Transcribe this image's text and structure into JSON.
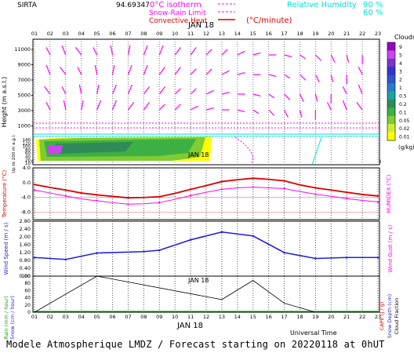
{
  "header": {
    "site": "SIRTA",
    "coords": "94.69347",
    "isotherm_label": "0°C isotherm",
    "snow_rain_label": "Snow-Rain Limit",
    "convective_label": "Convective Heat",
    "convective_unit": "(°C/minute)",
    "rh_label": "Relative Humidity",
    "rh_90": "90 %",
    "rh_60": "60 %",
    "date_label": "JAN 18"
  },
  "colors": {
    "magenta": "#ff00ff",
    "red": "#dd0000",
    "cyan": "#00dddd",
    "blue": "#2020dd",
    "green": "#00aa00"
  },
  "hours": [
    "01",
    "02",
    "03",
    "04",
    "05",
    "06",
    "07",
    "08",
    "09",
    "10",
    "11",
    "12",
    "13",
    "14",
    "15",
    "16",
    "17",
    "18",
    "19",
    "20",
    "21",
    "22",
    "23"
  ],
  "clouds_legend": {
    "title": "Clouds",
    "unit": "(g/kg)",
    "levels": [
      "9",
      "5",
      "4",
      "3",
      "2",
      "1",
      "0.5",
      "0.2",
      "0.1",
      "0.05",
      "0.02",
      "0.01"
    ],
    "colors": [
      "#9900cc",
      "#cc44ee",
      "#7a33cc",
      "#3333cc",
      "#2d55cc",
      "#2b7bcc",
      "#1aa3a3",
      "#2e8b57",
      "#3cb043",
      "#7fcc33",
      "#ccee33",
      "#ffff00"
    ]
  },
  "panel1": {
    "ylabel": "Height  (m a.s.l.)",
    "ylabel2": "Up to 200 m a.g.l.",
    "yticks_upper": [
      "11000",
      "9000",
      "7000",
      "5000",
      "3000",
      "1000"
    ],
    "yticks_lower": [
      "140",
      "120",
      "100",
      "80",
      "60",
      "40",
      "20",
      "10"
    ]
  },
  "panel2": {
    "ylabel": "Temperature (°C)",
    "ylabel_right": "HUMIDEX (°C)",
    "yticks": [
      "4.0",
      "0.0",
      "-4.0",
      "-8.0"
    ]
  },
  "panel3": {
    "ylabel": "Wind Speed (m / s)",
    "ylabel_right": "Wind Gust (m / s)",
    "yticks": [
      "2.80",
      "2.40",
      "2.00",
      "1.60",
      "1.20",
      "0.80",
      "0.40",
      "0.00"
    ]
  },
  "panel4": {
    "ylabel_rain": "Rain (mm / hour)",
    "ylabel_snow": "Snow (cm / hour)",
    "ylabel_cape": "CAPE (J / g)",
    "ylabel_snowdepth": "Snow Depth (cm)",
    "ylabel_cloudfrac": "Cloud Fraction",
    "yticks": [
      "100",
      "80",
      "60",
      "40",
      "20",
      "0"
    ],
    "xlabel": "Universal Time"
  },
  "chart_data": [
    {
      "type": "line",
      "title": "Temperature",
      "x": [
        1,
        2,
        3,
        4,
        5,
        6,
        7,
        8,
        9,
        10,
        11,
        12,
        13,
        14,
        15,
        16,
        17,
        18,
        19,
        20,
        21,
        22,
        23
      ],
      "series": [
        {
          "name": "Temperature",
          "values": [
            -0.5,
            -1.3,
            -2.0,
            -2.8,
            -3.3,
            -3.7,
            -4.1,
            -4.0,
            -3.8,
            -2.9,
            -1.8,
            -0.8,
            0.3,
            0.8,
            1.2,
            0.9,
            0.5,
            -0.6,
            -1.4,
            -2.0,
            -2.6,
            -3.2,
            -3.6
          ]
        },
        {
          "name": "HUMIDEX",
          "values": [
            -2.0,
            -2.8,
            -3.6,
            -4.4,
            -4.9,
            -5.4,
            -5.8,
            -5.7,
            -5.4,
            -4.5,
            -3.5,
            -2.6,
            -1.8,
            -1.4,
            -1.2,
            -1.4,
            -1.6,
            -2.4,
            -3.1,
            -3.7,
            -4.3,
            -4.8,
            -5.2
          ]
        }
      ],
      "ylim": [
        -10,
        4
      ]
    },
    {
      "type": "line",
      "title": "Wind Speed",
      "x": [
        1,
        3,
        5,
        8,
        9,
        11,
        13,
        15,
        17,
        19,
        21,
        23
      ],
      "series": [
        {
          "name": "Wind Speed",
          "values": [
            0.95,
            0.85,
            1.18,
            1.25,
            1.32,
            1.85,
            2.25,
            2.05,
            1.2,
            0.9,
            0.95,
            0.95
          ]
        }
      ],
      "ylim": [
        0.0,
        2.8
      ]
    },
    {
      "type": "line",
      "title": "Cloud Fraction",
      "x": [
        1,
        5,
        13,
        15,
        17,
        19,
        21,
        23
      ],
      "series": [
        {
          "name": "Cloud Fraction",
          "values": [
            0,
            100,
            35,
            88,
            25,
            0,
            0,
            0
          ]
        }
      ],
      "ylim": [
        0,
        100
      ]
    }
  ],
  "footer": "Modele Atmospherique LMDZ / Forecast starting on 20220118 at 0hUT"
}
